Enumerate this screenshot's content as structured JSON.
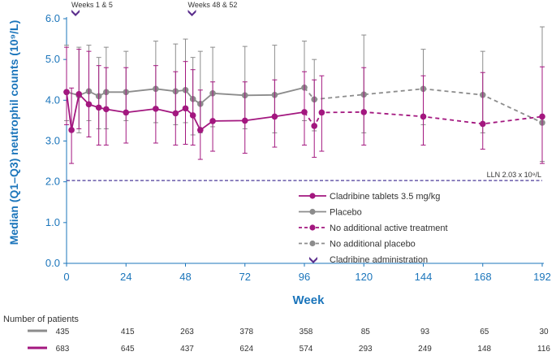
{
  "chart_data": {
    "type": "line",
    "xlabel": "Week",
    "ylabel": "Median (Q1–Q3) neutrophil counts (10⁹/L)",
    "xlim": [
      0,
      192
    ],
    "ylim": [
      0,
      6
    ],
    "x_ticks": [
      "0",
      "24",
      "48",
      "72",
      "96",
      "120",
      "144",
      "168",
      "192"
    ],
    "y_ticks": [
      "0.0",
      "1.0",
      "2.0",
      "3.0",
      "4.0",
      "5.0",
      "6.0"
    ],
    "reference_line": {
      "label": "LLN 2.03 x 10⁹/L",
      "value": 2.03,
      "color": "#4b3a9a"
    },
    "administration_markers": [
      {
        "label": "Weeks 1 & 5",
        "weeks": [
          1,
          5
        ]
      },
      {
        "label": "Weeks 48 & 52",
        "weeks": [
          48,
          52
        ]
      }
    ],
    "series": [
      {
        "name": "Cladribine tablets 3.5 mg/kg",
        "color": "#a3177f",
        "style": "solid",
        "points": [
          {
            "x": 0,
            "y": 4.2,
            "low": 3.4,
            "high": 5.3
          },
          {
            "x": 2,
            "y": 3.27,
            "low": 2.45,
            "high": 4.3
          },
          {
            "x": 5,
            "y": 4.15,
            "low": 3.3,
            "high": 5.25
          },
          {
            "x": 9,
            "y": 3.9,
            "low": 3.1,
            "high": 5.2
          },
          {
            "x": 13,
            "y": 3.82,
            "low": 2.9,
            "high": 4.85
          },
          {
            "x": 16,
            "y": 3.78,
            "low": 2.9,
            "high": 4.8
          },
          {
            "x": 24,
            "y": 3.7,
            "low": 2.95,
            "high": 4.8
          },
          {
            "x": 36,
            "y": 3.79,
            "low": 2.95,
            "high": 4.85
          },
          {
            "x": 44,
            "y": 3.68,
            "low": 2.9,
            "high": 4.7
          },
          {
            "x": 48,
            "y": 3.8,
            "low": 2.92,
            "high": 4.95
          },
          {
            "x": 51,
            "y": 3.63,
            "low": 2.9,
            "high": 4.75
          },
          {
            "x": 54,
            "y": 3.27,
            "low": 2.55,
            "high": 4.25
          },
          {
            "x": 59,
            "y": 3.49,
            "low": 2.75,
            "high": 4.45
          },
          {
            "x": 72,
            "y": 3.5,
            "low": 2.7,
            "high": 4.45
          },
          {
            "x": 84,
            "y": 3.6,
            "low": 2.85,
            "high": 4.5
          },
          {
            "x": 96,
            "y": 3.71,
            "low": 2.9,
            "high": 4.7
          }
        ]
      },
      {
        "name": "Placebo",
        "color": "#8c8c8c",
        "style": "solid",
        "points": [
          {
            "x": 0,
            "y": 4.2,
            "low": 3.5,
            "high": 5.35
          },
          {
            "x": 5,
            "y": 4.12,
            "low": 3.2,
            "high": 5.3
          },
          {
            "x": 9,
            "y": 4.22,
            "low": 3.5,
            "high": 5.35
          },
          {
            "x": 13,
            "y": 4.1,
            "low": 3.3,
            "high": 5.05
          },
          {
            "x": 16,
            "y": 4.2,
            "low": 3.3,
            "high": 5.3
          },
          {
            "x": 24,
            "y": 4.2,
            "low": 3.5,
            "high": 5.2
          },
          {
            "x": 36,
            "y": 4.28,
            "low": 3.45,
            "high": 5.45
          },
          {
            "x": 44,
            "y": 4.22,
            "low": 3.4,
            "high": 5.38
          },
          {
            "x": 48,
            "y": 4.25,
            "low": 3.45,
            "high": 5.5
          },
          {
            "x": 51,
            "y": 4.03,
            "low": 3.15,
            "high": 5.05
          },
          {
            "x": 54,
            "y": 3.91,
            "low": 3.2,
            "high": 5.2
          },
          {
            "x": 59,
            "y": 4.17,
            "low": 3.35,
            "high": 5.3
          },
          {
            "x": 72,
            "y": 4.12,
            "low": 3.3,
            "high": 5.32
          },
          {
            "x": 84,
            "y": 4.13,
            "low": 3.2,
            "high": 5.35
          },
          {
            "x": 96,
            "y": 4.31,
            "low": 3.5,
            "high": 5.45
          }
        ]
      },
      {
        "name": "No additional active treatment",
        "color": "#a3177f",
        "style": "dashed",
        "points": [
          {
            "x": 96,
            "y": 3.71
          },
          {
            "x": 100,
            "y": 3.37,
            "low": 2.6,
            "high": 4.5
          },
          {
            "x": 103,
            "y": 3.7,
            "low": 2.75,
            "high": 4.6
          },
          {
            "x": 120,
            "y": 3.71,
            "low": 2.9,
            "high": 4.8
          },
          {
            "x": 144,
            "y": 3.6,
            "low": 2.9,
            "high": 4.6
          },
          {
            "x": 168,
            "y": 3.42,
            "low": 2.8,
            "high": 4.68
          },
          {
            "x": 192,
            "y": 3.6,
            "low": 2.45,
            "high": 4.82
          }
        ]
      },
      {
        "name": "No additional placebo",
        "color": "#8c8c8c",
        "style": "dashed",
        "points": [
          {
            "x": 96,
            "y": 4.31
          },
          {
            "x": 100,
            "y": 4.02,
            "low": 3.25,
            "high": 5.0
          },
          {
            "x": 120,
            "y": 4.14,
            "low": 3.2,
            "high": 5.6
          },
          {
            "x": 144,
            "y": 4.28,
            "low": 3.4,
            "high": 5.25
          },
          {
            "x": 168,
            "y": 4.13,
            "low": 3.2,
            "high": 5.2
          },
          {
            "x": 192,
            "y": 3.45,
            "low": 2.5,
            "high": 5.8
          }
        ]
      }
    ],
    "legend": [
      {
        "label": "Cladribine tablets 3.5 mg/kg",
        "symbol": "line-marker",
        "color": "#a3177f",
        "style": "solid"
      },
      {
        "label": "Placebo",
        "symbol": "line-marker",
        "color": "#8c8c8c",
        "style": "solid"
      },
      {
        "label": "No additional active treatment",
        "symbol": "line-marker",
        "color": "#a3177f",
        "style": "dashed"
      },
      {
        "label": "No additional placebo",
        "symbol": "line-marker",
        "color": "#8c8c8c",
        "style": "dashed"
      },
      {
        "label": "Cladribine administration",
        "symbol": "chevron",
        "color": "#5a2d8c",
        "style": "solid"
      }
    ],
    "number_of_patients": {
      "title": "Number of patients",
      "rows": [
        {
          "color": "#8c8c8c",
          "values": [
            "435",
            "415",
            "263",
            "378",
            "358",
            "85",
            "93",
            "65",
            "30"
          ]
        },
        {
          "color": "#a3177f",
          "values": [
            "683",
            "645",
            "437",
            "624",
            "574",
            "293",
            "249",
            "148",
            "116"
          ]
        }
      ]
    }
  }
}
